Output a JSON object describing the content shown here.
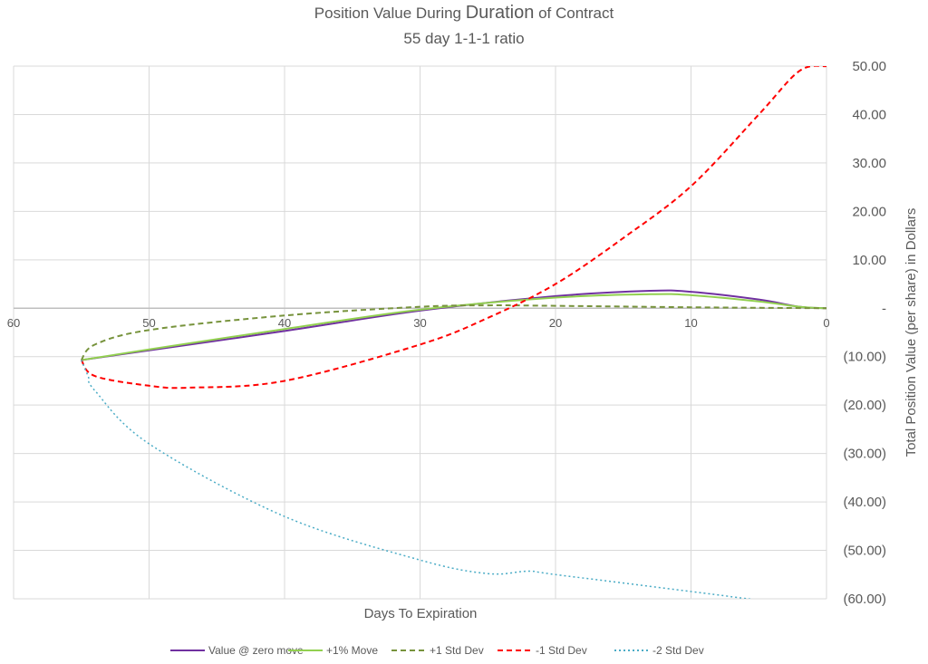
{
  "chart_data": {
    "type": "line",
    "title_prefix": "Position Value During ",
    "title_emph": "Duration",
    "title_suffix": " of Contract",
    "subtitle": "55 day 1-1-1 ratio",
    "xlabel": "Days To Expiration",
    "ylabel": "Total Position Value (per share) in Dollars",
    "xlim": [
      60,
      0
    ],
    "x_reversed": true,
    "ylim": [
      -60,
      50
    ],
    "x_ticks": [
      "60",
      "50",
      "40",
      "30",
      "20",
      "10",
      "0"
    ],
    "y_ticks": [
      "50.00",
      "40.00",
      "30.00",
      "20.00",
      "10.00",
      "-",
      "(10.00)",
      "(20.00)",
      "(30.00)",
      "(40.00)",
      "(50.00)",
      "(60.00)"
    ],
    "grid": true,
    "legend": "bottom",
    "series": [
      {
        "name": "Value @ zero move",
        "color": "#7030a0",
        "style": "solid",
        "x": [
          55,
          50,
          40,
          30,
          20,
          13,
          10,
          5,
          2,
          0
        ],
        "y": [
          -10.7,
          -8.7,
          -4.7,
          -0.5,
          2.5,
          3.6,
          3.4,
          1.8,
          0.3,
          0
        ]
      },
      {
        "name": "+1% Move",
        "color": "#92d050",
        "style": "solid",
        "x": [
          55,
          50,
          40,
          30,
          20,
          13,
          10,
          5,
          2,
          0
        ],
        "y": [
          -10.7,
          -8.5,
          -4.3,
          -0.3,
          2.2,
          2.9,
          2.7,
          1.4,
          0.3,
          0
        ]
      },
      {
        "name": "+1 Std Dev",
        "color": "#77933c",
        "style": "dash",
        "x": [
          55,
          54,
          50,
          40,
          30,
          25,
          20,
          10,
          0
        ],
        "y": [
          -10.7,
          -7.5,
          -4.5,
          -1.5,
          0.3,
          0.6,
          0.5,
          0.2,
          0
        ]
      },
      {
        "name": "-1 Std Dev",
        "color": "#ff0000",
        "style": "dash",
        "x": [
          55,
          54,
          50,
          47,
          40,
          30,
          25,
          20,
          15,
          10,
          5,
          2,
          0
        ],
        "y": [
          -10.7,
          -14,
          -16,
          -16.4,
          -15,
          -7.5,
          -2,
          5,
          14.5,
          25.2,
          40,
          49,
          50
        ]
      },
      {
        "name": "-2 Std Dev",
        "color": "#4bacc6",
        "style": "dot",
        "x": [
          55,
          54.5,
          54,
          50,
          40,
          30,
          25,
          22,
          20,
          10,
          5
        ],
        "y": [
          -10.7,
          -14,
          -17,
          -28,
          -43,
          -52,
          -54.8,
          -54.3,
          -55,
          -58.5,
          -60.3
        ]
      }
    ]
  }
}
